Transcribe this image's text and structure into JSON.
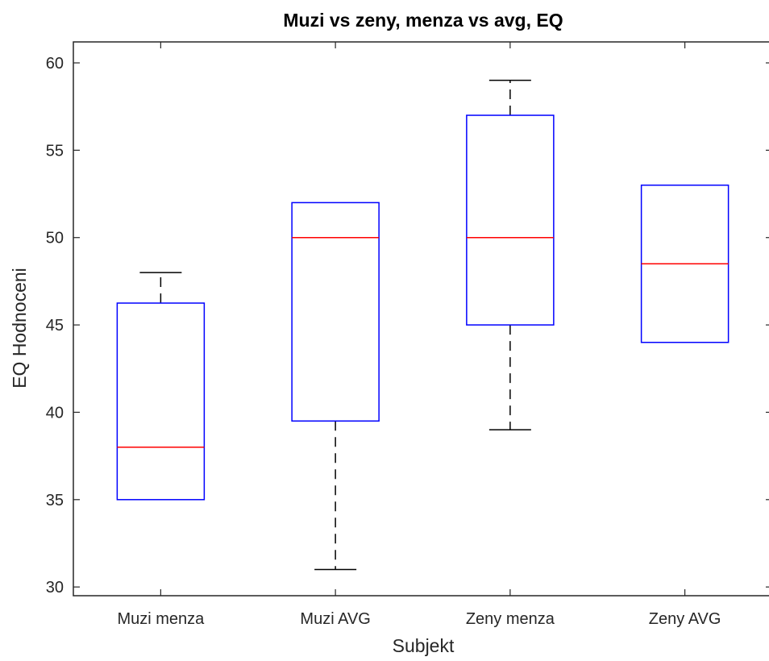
{
  "chart_data": {
    "type": "box",
    "title": "Muzi vs zeny, menza vs avg, EQ",
    "xlabel": "Subjekt",
    "ylabel": "EQ Hodnoceni",
    "ylim": [
      29.5,
      61.2
    ],
    "yticks": [
      30,
      35,
      40,
      45,
      50,
      55,
      60
    ],
    "grid": false,
    "categories": [
      "Muzi menza",
      "Muzi AVG",
      "Zeny menza",
      "Zeny AVG"
    ],
    "boxes": [
      {
        "label": "Muzi menza",
        "whisker_low": 35,
        "q1": 35,
        "median": 38,
        "q3": 46.25,
        "whisker_high": 48
      },
      {
        "label": "Muzi AVG",
        "whisker_low": 31,
        "q1": 39.5,
        "median": 50,
        "q3": 52,
        "whisker_high": 52
      },
      {
        "label": "Zeny menza",
        "whisker_low": 39,
        "q1": 45,
        "median": 50,
        "q3": 57,
        "whisker_high": 59
      },
      {
        "label": "Zeny AVG",
        "whisker_low": 44,
        "q1": 44,
        "median": 48.5,
        "q3": 53,
        "whisker_high": 53
      }
    ],
    "colors": {
      "box": "#0000ff",
      "median": "#ff0000",
      "whisker": "#000000",
      "axes": "#262626"
    }
  }
}
